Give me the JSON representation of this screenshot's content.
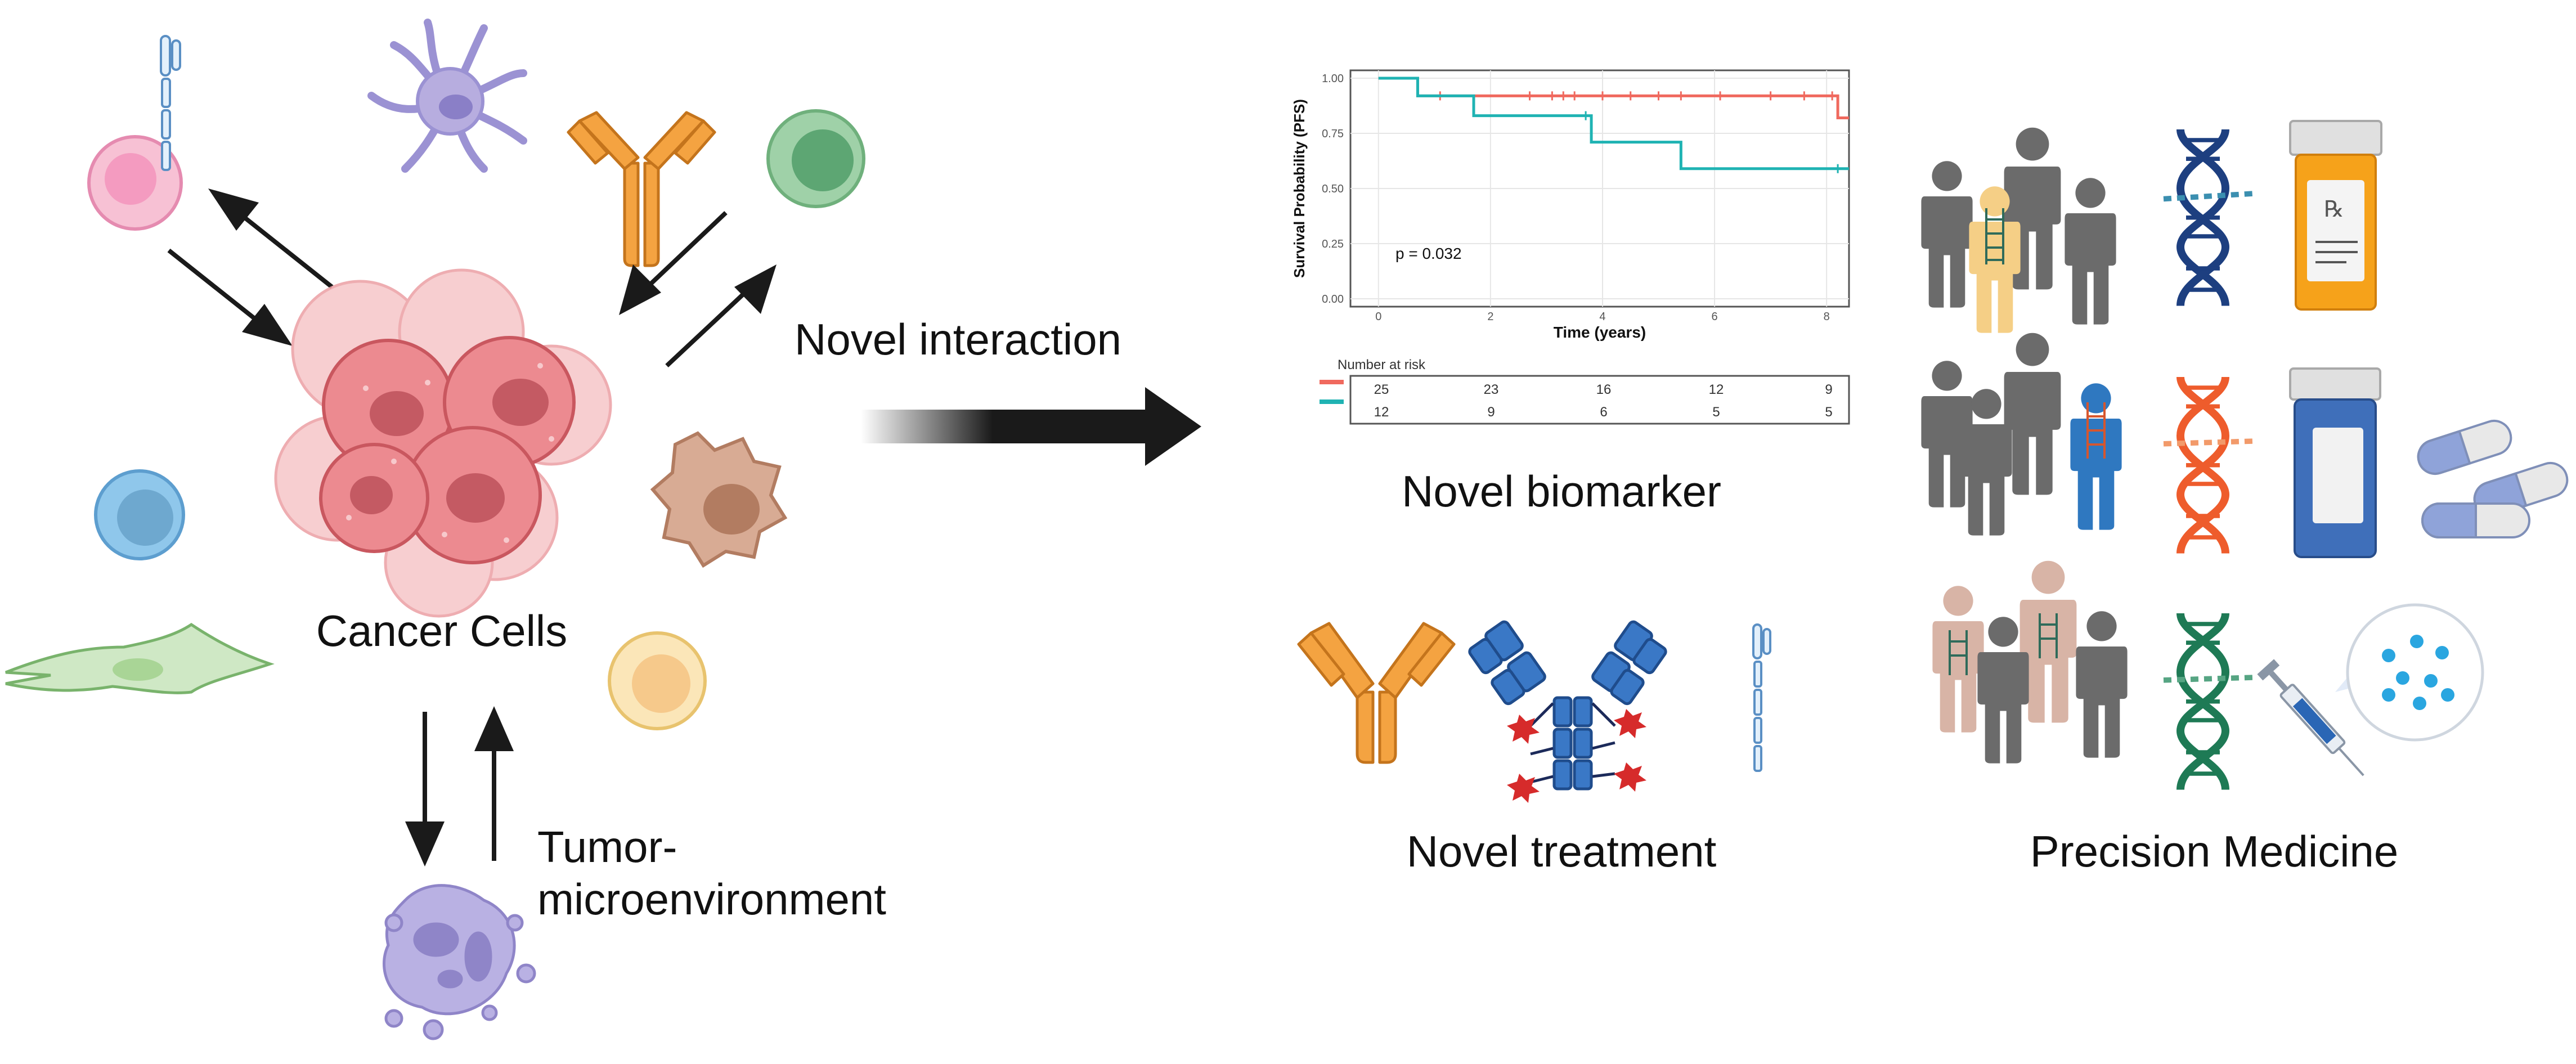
{
  "labels": {
    "cancer_cells": "Cancer Cells",
    "tme_line1": "Tumor-",
    "tme_line2": "microenvironment",
    "novel_interaction": "Novel interaction",
    "novel_biomarker": "Novel biomarker",
    "novel_treatment": "Novel treatment",
    "precision_medicine": "Precision Medicine"
  },
  "km_plot": {
    "ylabel": "Survival Probability (PFS)",
    "xlabel": "Time (years)",
    "pvalue": "p = 0.032",
    "y_ticks": [
      "0.00",
      "0.25",
      "0.50",
      "0.75",
      "1.00"
    ],
    "x_ticks": [
      "0",
      "2",
      "4",
      "6",
      "8"
    ],
    "risk_title": "Number at risk",
    "risk_rows": [
      {
        "color": "#f0695e",
        "values": [
          "25",
          "23",
          "16",
          "12",
          "9"
        ]
      },
      {
        "color": "#1fb3b3",
        "values": [
          "12",
          "9",
          "6",
          "5",
          "5"
        ]
      }
    ]
  },
  "chart_data": {
    "type": "line",
    "xlabel": "Time (years)",
    "ylabel": "Survival Probability (PFS)",
    "xlim": [
      -0.5,
      8.4
    ],
    "ylim": [
      0,
      1
    ],
    "series": [
      {
        "color": "#f0695e",
        "x": [
          0,
          0.7,
          0.7,
          8.2,
          8.2,
          8.4
        ],
        "y": [
          1.0,
          1.0,
          0.92,
          0.92,
          0.82,
          0.82
        ],
        "censor_x": [
          1.1,
          2.7,
          3.1,
          3.3,
          3.5,
          4.0,
          4.5,
          5.0,
          5.4,
          6.1,
          7.0,
          7.6,
          8.1
        ]
      },
      {
        "color": "#1fb3b3",
        "x": [
          0,
          0.7,
          0.7,
          1.7,
          1.7,
          3.8,
          3.8,
          5.4,
          5.4,
          8.4
        ],
        "y": [
          1.0,
          1.0,
          0.92,
          0.92,
          0.83,
          0.83,
          0.71,
          0.71,
          0.59,
          0.59
        ],
        "censor_x": [
          3.7,
          8.2
        ]
      }
    ]
  },
  "colors": {
    "arrow": "#1a1a1a",
    "cancer": "#e5787f",
    "person": "#6b6b6b",
    "antibody_orange": "#f4a341",
    "antibody_blue": "#3a78c6"
  }
}
